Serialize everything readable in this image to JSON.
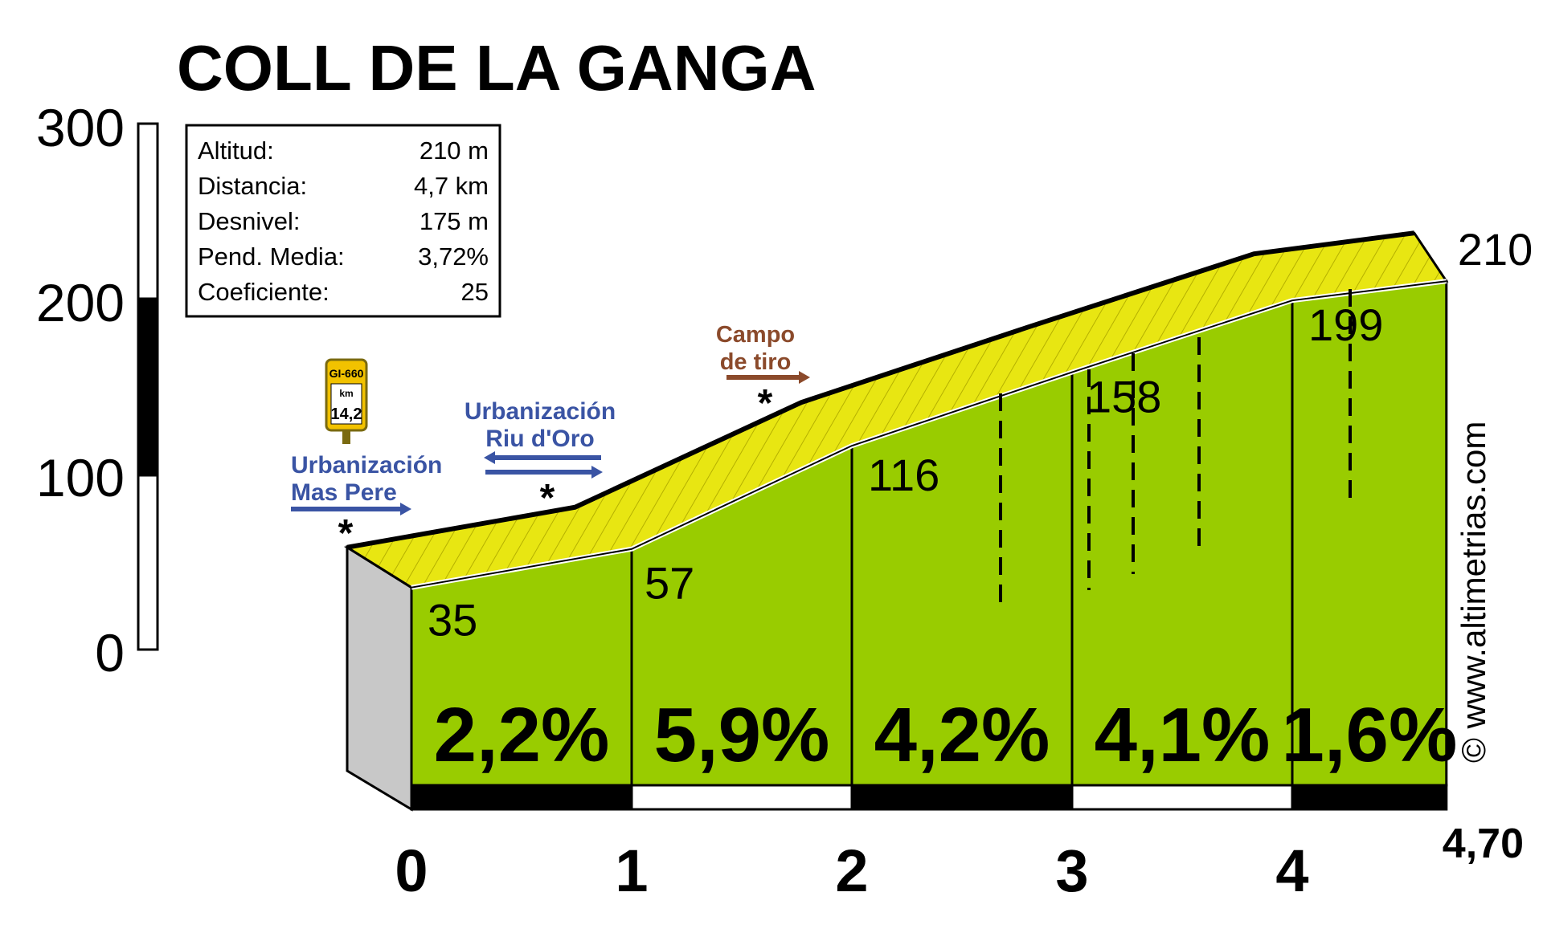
{
  "chart_data": {
    "type": "area",
    "title": "COLL DE LA GANGA",
    "x_unit": "km",
    "y_unit": "m",
    "ylim": [
      0,
      300
    ],
    "y_ticks": [
      "300",
      "200",
      "100",
      "0"
    ],
    "x_ticks": [
      "0",
      "1",
      "2",
      "3",
      "4"
    ],
    "x_end_label": "4,70",
    "x": [
      0,
      1,
      2,
      3,
      4,
      4.7
    ],
    "altitudes": [
      35,
      57,
      116,
      158,
      199,
      210
    ],
    "altitude_labels": [
      "35",
      "57",
      "116",
      "158",
      "199",
      "210"
    ],
    "segments": [
      {
        "from_km": 0,
        "to_km": 1,
        "gradient": "2,2%"
      },
      {
        "from_km": 1,
        "to_km": 2,
        "gradient": "5,9%"
      },
      {
        "from_km": 2,
        "to_km": 3,
        "gradient": "4,2%"
      },
      {
        "from_km": 3,
        "to_km": 4,
        "gradient": "4,1%"
      },
      {
        "from_km": 4,
        "to_km": 4.7,
        "gradient": "1,6%"
      }
    ],
    "stats": [
      {
        "label": "Altitud:",
        "value": "210 m"
      },
      {
        "label": "Distancia:",
        "value": "4,7 km"
      },
      {
        "label": "Desnivel:",
        "value": "175 m"
      },
      {
        "label": "Pend. Media:",
        "value": "3,72%"
      },
      {
        "label": "Coeficiente:",
        "value": "25"
      }
    ],
    "road_sign": {
      "road": "GI-660",
      "unit": "km",
      "km": "14,2"
    },
    "annotations": [
      {
        "lines": [
          "Urbanización",
          "Mas Pere"
        ],
        "km": 0,
        "arrow": "right",
        "color": "#3a54a4"
      },
      {
        "lines": [
          "Urbanización",
          "Riu d'Oro"
        ],
        "km": 0.6,
        "arrow": "both",
        "color": "#3a54a4"
      },
      {
        "lines": [
          "Campo",
          "de tiro"
        ],
        "km": 1.6,
        "arrow": "right",
        "color": "#8b4a2b"
      }
    ],
    "watermark": "© www.altimetrias.com",
    "colors": {
      "profile_fill": "#99cc00",
      "road_yellow": "#f0ee10",
      "road_olive": "#c9c400",
      "side_gray": "#c8c8c8",
      "scale_black": "#000000"
    }
  }
}
